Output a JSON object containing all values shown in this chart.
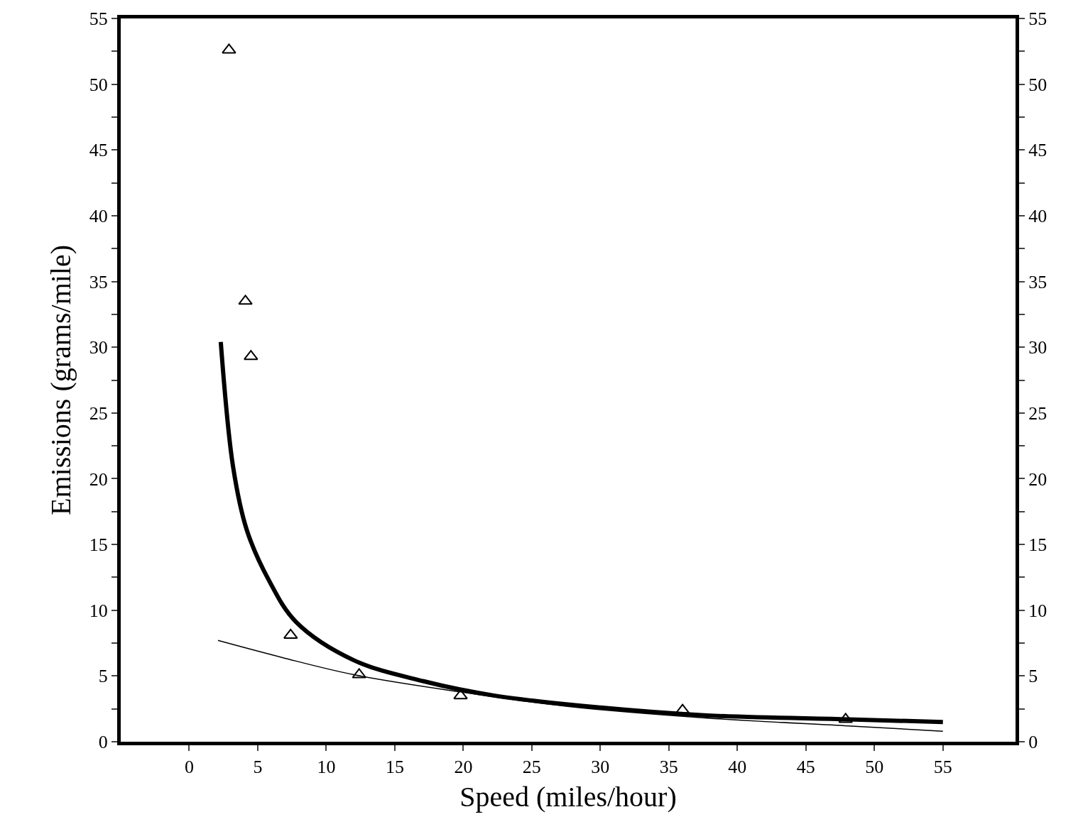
{
  "chart_data": {
    "type": "line",
    "xlabel": "Speed (miles/hour)",
    "ylabel": "Emissions (grams/mile)",
    "xlim": [
      -5,
      60.3
    ],
    "xticks": [
      0,
      5,
      10,
      15,
      20,
      25,
      30,
      35,
      40,
      45,
      50,
      55
    ],
    "ylim": [
      0,
      55
    ],
    "yticks": [
      0,
      {
        "value": 2.5,
        "label": null
      },
      5,
      {
        "value": 7.5,
        "label": null
      },
      10,
      {
        "value": 12.5,
        "label": null
      },
      15,
      {
        "value": 17.5,
        "label": null
      },
      20,
      {
        "value": 22.5,
        "label": null
      },
      25,
      {
        "value": 27.5,
        "label": null
      },
      30,
      {
        "value": 32.5,
        "label": null
      },
      35,
      {
        "value": 37.5,
        "label": null
      },
      40,
      {
        "value": 42.5,
        "label": null
      },
      45,
      {
        "value": 47.5,
        "label": null
      },
      50,
      {
        "value": 52.5,
        "label": null
      },
      55
    ],
    "y2lim": [
      0,
      55
    ],
    "y2ticks": [
      0,
      {
        "value": 2.5,
        "label": null
      },
      5,
      {
        "value": 7.5,
        "label": null
      },
      10,
      {
        "value": 12.5,
        "label": null
      },
      15,
      {
        "value": 17.5,
        "label": null
      },
      20,
      {
        "value": 22.5,
        "label": null
      },
      25,
      {
        "value": 27.5,
        "label": null
      },
      30,
      {
        "value": 32.5,
        "label": null
      },
      35,
      {
        "value": 37.5,
        "label": null
      },
      40,
      {
        "value": 42.5,
        "label": null
      },
      45,
      {
        "value": 47.5,
        "label": null
      },
      50,
      {
        "value": 52.5,
        "label": null
      },
      55
    ],
    "series": [
      {
        "color": "#000000",
        "line_style": "solid",
        "marker": "none",
        "x": [
          2.3,
          3.2,
          4.2,
          5.8,
          7.8,
          12,
          17.1,
          22.3,
          30,
          37.8,
          48.1,
          55
        ],
        "values": [
          30.4,
          20.9,
          16.1,
          12.3,
          9.1,
          6.2,
          4.6,
          3.5,
          2.6,
          2.0,
          1.7,
          1.5
        ]
      },
      {
        "color": "#000000",
        "line_style": "solid",
        "marker": "none",
        "x": [
          2.1,
          6.8,
          12,
          19.7,
          27.5,
          37.8,
          48.1,
          55
        ],
        "values": [
          7.7,
          6.4,
          5.1,
          3.8,
          2.7,
          1.8,
          1.2,
          0.8
        ]
      },
      {
        "type": "scatter",
        "color": "#000000",
        "marker": "triangle",
        "x": [
          2.9,
          4.1,
          4.5,
          7.4,
          12.4,
          19.8,
          36.0,
          47.9
        ],
        "values": [
          52.6,
          33.5,
          29.3,
          8.1,
          5.1,
          3.5,
          2.4,
          1.7
        ]
      }
    ]
  }
}
